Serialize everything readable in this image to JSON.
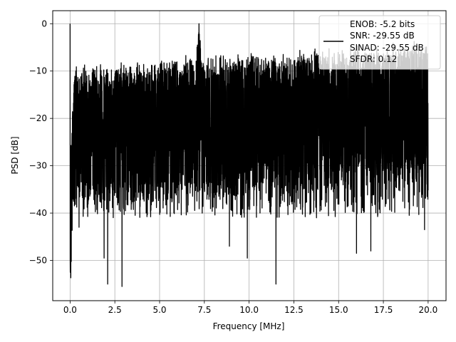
{
  "chart_data": {
    "type": "line",
    "xlabel": "Frequency [MHz]",
    "ylabel": "PSD [dB]",
    "xlim": [
      -0.97,
      21.0
    ],
    "ylim": [
      -58.5,
      2.75
    ],
    "x_ticks": [
      0.0,
      2.5,
      5.0,
      7.5,
      10.0,
      12.5,
      15.0,
      17.5,
      20.0
    ],
    "x_tick_labels": [
      "0.0",
      "2.5",
      "5.0",
      "7.5",
      "10.0",
      "12.5",
      "15.0",
      "17.5",
      "20.0"
    ],
    "y_ticks": [
      0,
      -10,
      -20,
      -30,
      -40,
      -50
    ],
    "y_tick_labels": [
      "0",
      "−10",
      "−20",
      "−30",
      "−40",
      "−50"
    ],
    "grid": true,
    "legend_position": "top-right",
    "legend_lines": [
      "ENOB: -5.2 bits",
      "SNR: -29.55 dB",
      "SINAD: -29.55 dB",
      "SFDR: 0.12"
    ],
    "series_color": "#000000",
    "x_range": [
      0.0,
      20.0
    ],
    "noise_band": [
      [
        0.0,
        -31
      ],
      [
        0.2,
        -10
      ],
      [
        1.0,
        -10
      ],
      [
        7.0,
        -8
      ],
      [
        7.2,
        0
      ],
      [
        7.4,
        -8
      ],
      [
        20.0,
        -5
      ]
    ],
    "notable_points": [
      {
        "x": 0.0,
        "y": 0.0
      },
      {
        "x": 7.2,
        "y": 0.0
      },
      {
        "x": 2.1,
        "y": -55.0
      },
      {
        "x": 2.9,
        "y": -55.5
      },
      {
        "x": 11.5,
        "y": -55.0
      },
      {
        "x": 1.9,
        "y": -49.5
      },
      {
        "x": 9.9,
        "y": -49.5
      },
      {
        "x": 8.9,
        "y": -47.0
      },
      {
        "x": 16.0,
        "y": -48.5
      },
      {
        "x": 16.8,
        "y": -48.0
      },
      {
        "x": 0.5,
        "y": -43.0
      },
      {
        "x": 19.8,
        "y": -43.5
      }
    ]
  }
}
